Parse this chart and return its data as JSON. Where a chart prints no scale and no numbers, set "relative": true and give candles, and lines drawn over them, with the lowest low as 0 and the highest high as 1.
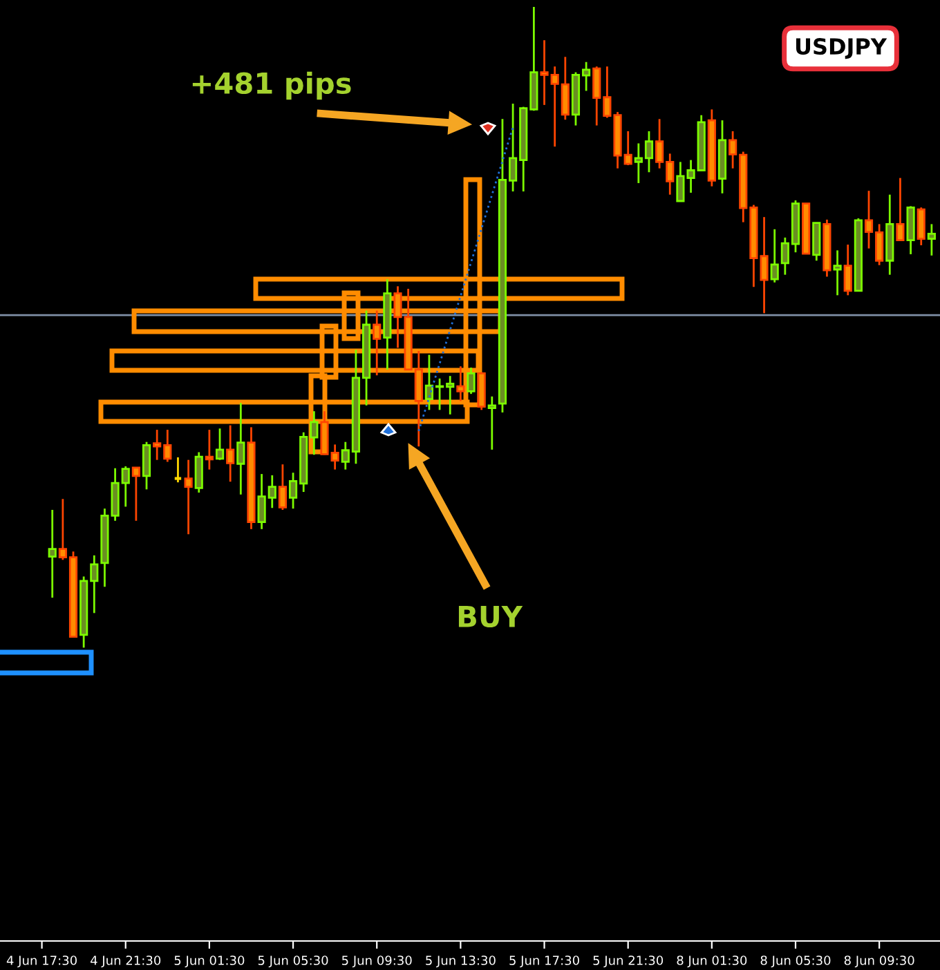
{
  "chart_data": {
    "type": "candlestick",
    "relative": true,
    "tick_labels": "x",
    "categories": [
      "4 Jun 17:30",
      null,
      null,
      null,
      null,
      null,
      null,
      null,
      "4 Jun 21:30",
      null,
      null,
      null,
      null,
      null,
      null,
      null,
      "5 Jun 01:30",
      null,
      null,
      null,
      null,
      null,
      null,
      null,
      "5 Jun 05:30",
      null,
      null,
      null,
      null,
      null,
      null,
      null,
      "5 Jun 09:30",
      null,
      null,
      null,
      null,
      null,
      null,
      null,
      "5 Jun 13:30",
      null,
      null,
      null,
      null,
      null,
      null,
      null,
      "5 Jun 17:30",
      null,
      null,
      null,
      null,
      null,
      null,
      null,
      "5 Jun 21:30",
      null,
      null,
      null,
      null,
      null,
      null,
      null,
      "8 Jun 01:30",
      null,
      null,
      null,
      null,
      null,
      null,
      null,
      "8 Jun 05:30",
      null,
      null,
      null,
      null,
      null,
      null,
      null,
      "8 Jun 09:30",
      null,
      null,
      null,
      null,
      null
    ],
    "ohlc": [
      null,
      [
        0.142,
        0.215,
        0.078,
        0.154
      ],
      [
        0.154,
        0.232,
        0.137,
        0.141
      ],
      [
        0.141,
        0.15,
        0.017,
        0.017
      ],
      [
        0.02,
        0.111,
        0,
        0.104
      ],
      [
        0.104,
        0.144,
        0.054,
        0.13
      ],
      [
        0.132,
        0.217,
        0.095,
        0.206
      ],
      [
        0.206,
        0.28,
        0.198,
        0.257
      ],
      [
        0.257,
        0.283,
        0.22,
        0.279
      ],
      [
        0.281,
        0.281,
        0.198,
        0.268
      ],
      [
        0.268,
        0.321,
        0.247,
        0.316
      ],
      [
        0.319,
        0.34,
        0.293,
        0.314
      ],
      [
        0.316,
        0.34,
        0.29,
        0.295
      ],
      [
        0.264,
        0.297,
        0.258,
        0.264
      ],
      [
        0.264,
        0.293,
        0.177,
        0.251
      ],
      [
        0.249,
        0.305,
        0.242,
        0.298
      ],
      [
        0.298,
        0.34,
        0.278,
        0.294
      ],
      [
        0.295,
        0.342,
        0.293,
        0.309
      ],
      [
        0.309,
        0.347,
        0.259,
        0.288
      ],
      [
        0.287,
        0.382,
        0.239,
        0.32
      ],
      [
        0.32,
        0.344,
        0.185,
        0.196
      ],
      [
        0.196,
        0.271,
        0.185,
        0.236
      ],
      [
        0.234,
        0.269,
        0.218,
        0.251
      ],
      [
        0.251,
        0.286,
        0.215,
        0.219
      ],
      [
        0.234,
        0.273,
        0.217,
        0.26
      ],
      [
        0.256,
        0.336,
        0.243,
        0.329
      ],
      [
        0.328,
        0.369,
        0.301,
        0.352
      ],
      [
        0.352,
        0.369,
        0.301,
        0.302
      ],
      [
        0.304,
        0.317,
        0.278,
        0.292
      ],
      [
        0.29,
        0.321,
        0.278,
        0.308
      ],
      [
        0.306,
        0.465,
        0.287,
        0.421
      ],
      [
        0.421,
        0.526,
        0.378,
        0.504
      ],
      [
        0.504,
        0.526,
        0.425,
        0.482
      ],
      [
        0.484,
        0.575,
        0.434,
        0.553
      ],
      [
        0.553,
        0.564,
        0.468,
        0.516
      ],
      [
        0.516,
        0.56,
        0.434,
        0.434
      ],
      [
        0.434,
        0.463,
        0.314,
        0.385
      ],
      [
        0.388,
        0.457,
        0.371,
        0.409
      ],
      [
        0.407,
        0.42,
        0.371,
        0.408
      ],
      [
        0.407,
        0.424,
        0.364,
        0.412
      ],
      [
        0.408,
        0.439,
        0.385,
        0.4
      ],
      [
        0.4,
        0.437,
        0.396,
        0.428
      ],
      [
        0.428,
        0.43,
        0.371,
        0.376
      ],
      [
        0.374,
        0.392,
        0.309,
        0.378
      ],
      [
        0.381,
        0.825,
        0.367,
        0.73
      ],
      [
        0.729,
        0.849,
        0.712,
        0.764
      ],
      [
        0.761,
        0.844,
        0.712,
        0.842
      ],
      [
        0.84,
        1,
        0.838,
        0.898
      ],
      [
        0.898,
        0.948,
        0.847,
        0.894
      ],
      [
        0.894,
        0.907,
        0.782,
        0.88
      ],
      [
        0.879,
        0.922,
        0.824,
        0.832
      ],
      [
        0.832,
        0.898,
        0.815,
        0.894
      ],
      [
        0.893,
        0.914,
        0.869,
        0.902
      ],
      [
        0.904,
        0.907,
        0.815,
        0.858
      ],
      [
        0.859,
        0.907,
        0.827,
        0.83
      ],
      [
        0.831,
        0.836,
        0.748,
        0.768
      ],
      [
        0.769,
        0.806,
        0.753,
        0.755
      ],
      [
        0.758,
        0.787,
        0.725,
        0.764
      ],
      [
        0.764,
        0.806,
        0.742,
        0.79
      ],
      [
        0.79,
        0.825,
        0.748,
        0.758
      ],
      [
        0.758,
        0.771,
        0.707,
        0.728
      ],
      [
        0.697,
        0.758,
        0.697,
        0.736
      ],
      [
        0.733,
        0.761,
        0.71,
        0.745
      ],
      [
        0.745,
        0.831,
        0.745,
        0.82
      ],
      [
        0.823,
        0.84,
        0.72,
        0.729
      ],
      [
        0.732,
        0.823,
        0.709,
        0.792
      ],
      [
        0.792,
        0.806,
        0.748,
        0.77
      ],
      [
        0.769,
        0.774,
        0.664,
        0.686
      ],
      [
        0.687,
        0.691,
        0.563,
        0.608
      ],
      [
        0.611,
        0.672,
        0.522,
        0.574
      ],
      [
        0.575,
        0.653,
        0.57,
        0.598
      ],
      [
        0.6,
        0.64,
        0.582,
        0.631
      ],
      [
        0.63,
        0.698,
        0.617,
        0.693
      ],
      [
        0.693,
        0.693,
        0.615,
        0.615
      ],
      [
        0.613,
        0.663,
        0.604,
        0.663
      ],
      [
        0.661,
        0.668,
        0.579,
        0.589
      ],
      [
        0.59,
        0.62,
        0.55,
        0.596
      ],
      [
        0.596,
        0.629,
        0.55,
        0.557
      ],
      [
        0.557,
        0.67,
        0.557,
        0.667
      ],
      [
        0.667,
        0.713,
        0.623,
        0.649
      ],
      [
        0.648,
        0.661,
        0.597,
        0.604
      ],
      [
        0.604,
        0.707,
        0.582,
        0.661
      ],
      [
        0.661,
        0.733,
        0.636,
        0.636
      ],
      [
        0.636,
        0.689,
        0.614,
        0.687
      ],
      [
        0.684,
        0.687,
        0.628,
        0.638
      ],
      [
        0.638,
        0.661,
        0.612,
        0.646
      ]
    ],
    "series": [
      {
        "type": "line",
        "color": "#1e6fd9",
        "line_style": "dotted",
        "values": [
          null,
          null,
          null,
          null,
          null,
          null,
          null,
          null,
          null,
          null,
          null,
          null,
          null,
          null,
          null,
          null,
          null,
          null,
          null,
          null,
          null,
          null,
          null,
          null,
          null,
          null,
          null,
          null,
          null,
          null,
          null,
          null,
          null,
          null,
          null,
          null,
          0.338,
          null,
          null,
          null,
          null,
          null,
          null,
          null,
          null,
          0.812,
          null,
          null,
          null,
          null,
          null,
          null,
          null,
          null,
          null,
          null,
          null,
          null,
          null,
          null,
          null,
          null,
          null,
          null,
          null,
          null,
          null,
          null,
          null,
          null,
          null,
          null,
          null,
          null,
          null,
          null,
          null,
          null,
          null,
          null,
          null,
          null,
          null,
          null,
          null,
          null
        ]
      }
    ],
    "ref_lines": [
      {
        "axis": "y",
        "value": 0.519,
        "color": "#7f8fa6"
      }
    ],
    "annotations": [
      "+481 pips",
      "BUY",
      "USDJPY"
    ]
  }
}
